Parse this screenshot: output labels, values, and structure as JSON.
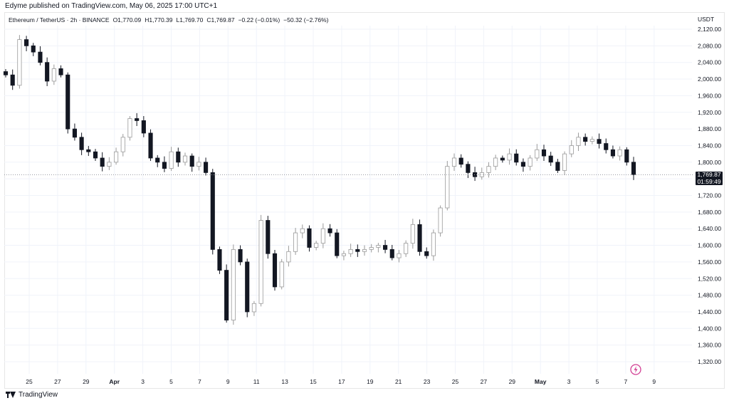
{
  "header": {
    "publisher_line": "Edyme published on TradingView.com, May 06, 2025 17:00 UTC+1"
  },
  "legend": {
    "symbol": "Ethereum / TetherUS · 2h · BINANCE",
    "open": "O1,770.09",
    "high": "H1,770.39",
    "low": "L1,769.70",
    "close": "C1,769.87",
    "change": "−0.22 (−0.01%)",
    "change_week": "−50.32 (−2.76%)"
  },
  "price_label": {
    "price": "1,769.87",
    "countdown": "01:59:49"
  },
  "footer": {
    "brand": "TradingView"
  },
  "icons": {
    "brand_logo": "tradingview-logo-icon",
    "flash": "lightning-icon"
  },
  "colors": {
    "candle_up": "#ffffff",
    "candle_up_border": "#9a9a9a",
    "candle_down": "#131722",
    "grid": "#f0f3fa",
    "price_line": "#9598a1",
    "flash": "#d23f94"
  },
  "chart_data": {
    "type": "candlestick",
    "currency": "USDT",
    "ylim": [
      1290,
      2145
    ],
    "y_ticks": [
      2120,
      2080,
      2040,
      2000,
      1960,
      1920,
      1880,
      1840,
      1800,
      1760,
      1720,
      1680,
      1640,
      1600,
      1560,
      1520,
      1480,
      1440,
      1400,
      1360,
      1320
    ],
    "y_tick_labels": [
      "2,120.00",
      "2,080.00",
      "2,040.00",
      "2,000.00",
      "1,960.00",
      "1,920.00",
      "1,880.00",
      "1,840.00",
      "1,800.00",
      "1,760.00",
      "1,720.00",
      "1,680.00",
      "1,640.00",
      "1,600.00",
      "1,560.00",
      "1,520.00",
      "1,480.00",
      "1,440.00",
      "1,400.00",
      "1,360.00",
      "1,320.00"
    ],
    "x_ticks": [
      "25",
      "27",
      "29",
      "Apr",
      "3",
      "5",
      "7",
      "9",
      "11",
      "13",
      "15",
      "17",
      "19",
      "21",
      "23",
      "25",
      "27",
      "29",
      "May",
      "3",
      "5",
      "7",
      "9"
    ],
    "x_tick_bold": [
      "Apr",
      "May"
    ],
    "last_price": 1769.87,
    "closes": [
      2010,
      1985,
      2095,
      2080,
      2065,
      2040,
      1995,
      2025,
      2010,
      1880,
      1860,
      1830,
      1825,
      1810,
      1790,
      1800,
      1825,
      1860,
      1905,
      1900,
      1870,
      1810,
      1800,
      1785,
      1825,
      1800,
      1815,
      1790,
      1800,
      1775,
      1590,
      1540,
      1420,
      1590,
      1560,
      1440,
      1460,
      1660,
      1580,
      1500,
      1560,
      1585,
      1630,
      1640,
      1595,
      1605,
      1640,
      1630,
      1575,
      1580,
      1590,
      1585,
      1590,
      1595,
      1600,
      1590,
      1570,
      1580,
      1605,
      1650,
      1585,
      1575,
      1630,
      1690,
      1790,
      1810,
      1795,
      1775,
      1765,
      1775,
      1790,
      1810,
      1805,
      1820,
      1800,
      1790,
      1810,
      1830,
      1815,
      1800,
      1780,
      1820,
      1840,
      1860,
      1850,
      1855,
      1845,
      1830,
      1815,
      1830,
      1800,
      1770
    ]
  }
}
